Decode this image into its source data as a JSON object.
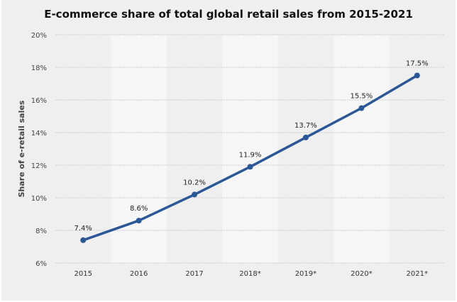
{
  "chart_data": {
    "type": "line",
    "title": "E-commerce share of total global retail sales from 2015-2021",
    "xlabel": "",
    "ylabel": "Share of e-retail sales",
    "categories": [
      "2015",
      "2016",
      "2017",
      "2018*",
      "2019*",
      "2020*",
      "2021*"
    ],
    "series": [
      {
        "name": "E-commerce share",
        "values": [
          7.4,
          8.6,
          10.2,
          11.9,
          13.7,
          15.5,
          17.5
        ]
      }
    ],
    "data_labels": [
      "7.4%",
      "8.6%",
      "10.2%",
      "11.9%",
      "13.7%",
      "15.5%",
      "17.5%"
    ],
    "ylim": [
      6,
      20
    ],
    "yticks": [
      6,
      8,
      10,
      12,
      14,
      16,
      18,
      20
    ],
    "ytick_labels": [
      "6%",
      "8%",
      "10%",
      "12%",
      "14%",
      "16%",
      "18%",
      "20%"
    ],
    "grid": true,
    "legend": "none",
    "line_color": "#2b5797",
    "band_color": "#f6f6f6",
    "background_color": "#efefef"
  }
}
